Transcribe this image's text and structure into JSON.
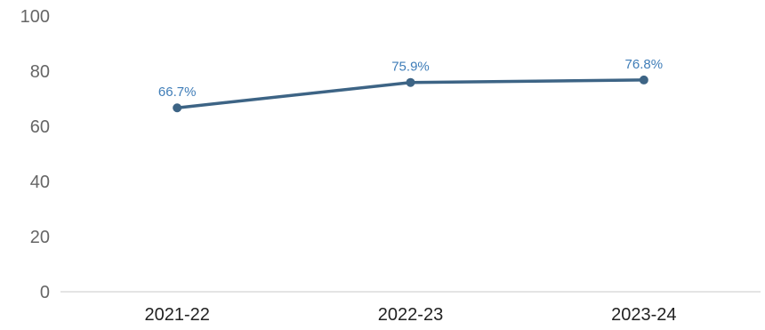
{
  "chart_data": {
    "type": "line",
    "categories": [
      "2021-22",
      "2022-23",
      "2023-24"
    ],
    "series": [
      {
        "values": [
          66.7,
          75.9,
          76.8
        ],
        "data_labels": [
          "66.7%",
          "75.9%",
          "76.8%"
        ]
      }
    ],
    "y_ticks": [
      "0",
      "20",
      "40",
      "60",
      "80",
      "100"
    ],
    "ylim": [
      0,
      100
    ],
    "grid": false,
    "colors": {
      "line": "#3d6485",
      "label": "#3f7db8",
      "axis": "#c8c8c8"
    }
  }
}
